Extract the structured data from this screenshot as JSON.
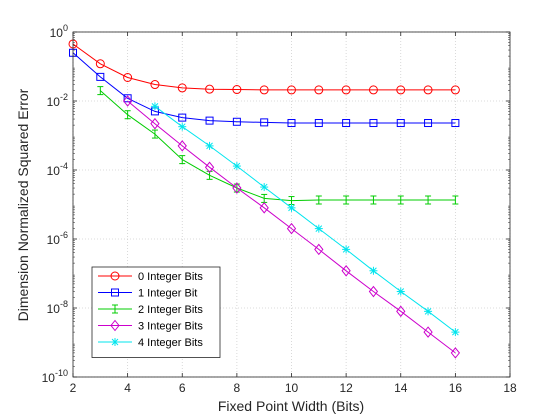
{
  "chart_data": {
    "type": "line",
    "xlabel": "Fixed Point Width (Bits)",
    "ylabel": "Dimension Normalized Squared Error",
    "xlim": [
      2,
      18
    ],
    "ylim_log10": [
      -10,
      0
    ],
    "y_scale": "log",
    "x_ticks": [
      "2",
      "4",
      "6",
      "8",
      "10",
      "12",
      "14",
      "16",
      "18"
    ],
    "y_tick_exponents": [
      "0",
      "-2",
      "-4",
      "-6",
      "-8",
      "-10"
    ],
    "y_tick_base": "10",
    "grid": true,
    "legend_position": "bottom-left",
    "series": [
      {
        "name": "0 Integer Bits",
        "color": "#ff0000",
        "marker": "circle",
        "x": [
          2,
          3,
          4,
          5,
          6,
          7,
          8,
          9,
          10,
          11,
          12,
          13,
          14,
          15,
          16
        ],
        "y": [
          0.45,
          0.12,
          0.048,
          0.03,
          0.024,
          0.022,
          0.0215,
          0.021,
          0.021,
          0.021,
          0.021,
          0.021,
          0.021,
          0.021,
          0.021
        ]
      },
      {
        "name": "1 Integer Bit",
        "color": "#0000ff",
        "marker": "square",
        "x": [
          2,
          3,
          4,
          5,
          6,
          7,
          8,
          9,
          10,
          11,
          12,
          13,
          14,
          15,
          16
        ],
        "y": [
          0.25,
          0.05,
          0.012,
          0.005,
          0.0033,
          0.0027,
          0.0025,
          0.0024,
          0.0023,
          0.0023,
          0.0023,
          0.0023,
          0.0023,
          0.0023,
          0.0023
        ]
      },
      {
        "name": "2 Integer Bits",
        "color": "#00cc00",
        "marker": "errorbar",
        "x": [
          3,
          4,
          5,
          6,
          7,
          8,
          9,
          10,
          11,
          12,
          13,
          14,
          15,
          16
        ],
        "y": [
          0.02,
          0.004,
          0.0011,
          0.0002,
          7e-05,
          3e-05,
          1.5e-05,
          1.3e-05,
          1.35e-05,
          1.35e-05,
          1.35e-05,
          1.35e-05,
          1.35e-05,
          1.35e-05
        ]
      },
      {
        "name": "3 Integer Bits",
        "color": "#cc00cc",
        "marker": "diamond",
        "x": [
          4,
          5,
          6,
          7,
          8,
          9,
          10,
          11,
          12,
          13,
          14,
          15,
          16
        ],
        "y": [
          0.01,
          0.0022,
          0.0005,
          0.00012,
          3e-05,
          8e-06,
          2e-06,
          5e-07,
          1.2e-07,
          3e-08,
          8e-09,
          2e-09,
          5e-10
        ]
      },
      {
        "name": "4 Integer Bits",
        "color": "#00e5ee",
        "marker": "asterisk",
        "x": [
          5,
          6,
          7,
          8,
          9,
          10,
          11,
          12,
          13,
          14,
          15,
          16
        ],
        "y": [
          0.007,
          0.0018,
          0.0005,
          0.00013,
          3.2e-05,
          8e-06,
          2e-06,
          5e-07,
          1.2e-07,
          3e-08,
          8e-09,
          2e-09
        ]
      }
    ]
  }
}
